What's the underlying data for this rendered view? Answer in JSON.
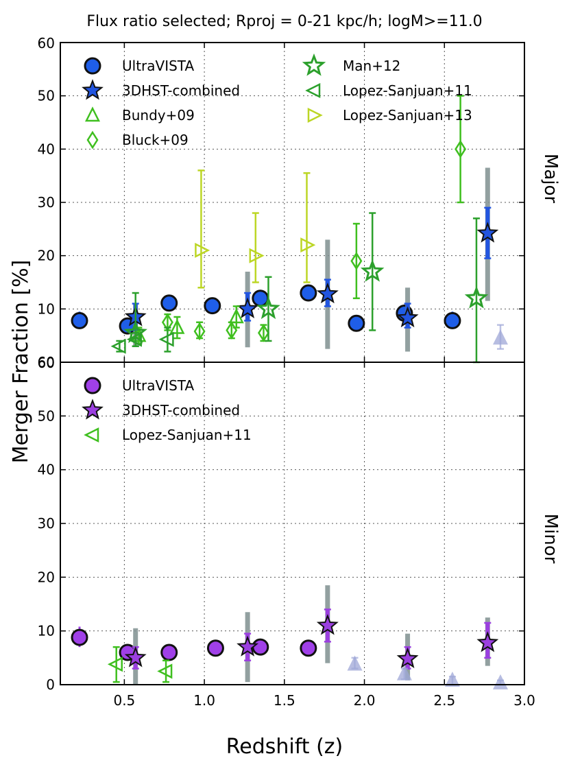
{
  "chart_data": {
    "type": "scatter",
    "title": "Flux ratio selected; Rproj = 0-21 kpc/h; logM>=11.0",
    "xlabel": "Redshift (z)",
    "ylabel": "Merger Fraction [%]",
    "xlim": [
      0.1,
      3.0
    ],
    "ylim": [
      0,
      60
    ],
    "xticks": [
      "0.5",
      "1.0",
      "1.5",
      "2.0",
      "2.5",
      "3.0"
    ],
    "yticks_major": [
      "10",
      "20",
      "30",
      "40",
      "50",
      "60"
    ],
    "yticks_minor": [
      "0",
      "10",
      "20",
      "30",
      "40",
      "50",
      "60"
    ],
    "grid": true,
    "colors": {
      "ultravista_major": "#1f5ee8",
      "ultravista_minor": "#a040e8",
      "star_major": "#2255e0",
      "star_minor": "#9b3fe0",
      "grey": "#7f9090",
      "green_dark": "#2ca02c",
      "green_mid": "#3fbf1f",
      "green_light": "#bcd625",
      "lavender": "#9fa8d8"
    },
    "panels": [
      {
        "label": "Major",
        "legend_col1": [
          "UltraVISTA",
          "3DHST-combined",
          "Bundy+09",
          "Bluck+09"
        ],
        "legend_col2": [
          "Man+12",
          "Lopez-Sanjuan+11",
          "Lopez-Sanjuan+13"
        ],
        "series": [
          {
            "name": "UltraVISTA",
            "marker": "circle",
            "color": "#1f5ee8",
            "points": [
              {
                "x": 0.22,
                "y": 7.8,
                "lo": 6.5,
                "hi": 9.5
              },
              {
                "x": 0.52,
                "y": 6.8,
                "lo": 5.8,
                "hi": 8.0
              },
              {
                "x": 0.78,
                "y": 11.1,
                "lo": 10.0,
                "hi": 12.2
              },
              {
                "x": 1.05,
                "y": 10.6,
                "lo": 9.8,
                "hi": 11.5
              },
              {
                "x": 1.35,
                "y": 12.0,
                "lo": 10.8,
                "hi": 13.2
              },
              {
                "x": 1.65,
                "y": 13.0,
                "lo": 11.5,
                "hi": 14.5
              },
              {
                "x": 1.95,
                "y": 7.3,
                "lo": 6.5,
                "hi": 8.2
              },
              {
                "x": 2.25,
                "y": 9.2,
                "lo": 7.8,
                "hi": 10.8
              },
              {
                "x": 2.55,
                "y": 7.8,
                "lo": 6.5,
                "hi": 9.5
              }
            ]
          },
          {
            "name": "3DHST-combined",
            "marker": "star",
            "color": "#2255e0",
            "sys_color": "#7f9090",
            "points": [
              {
                "x": 0.57,
                "y": 8.5,
                "lo": 6.0,
                "hi": 11.0,
                "slo": 3.0,
                "shi": 11.0
              },
              {
                "x": 1.27,
                "y": 10.0,
                "lo": 7.8,
                "hi": 13.0,
                "slo": 2.8,
                "shi": 17.0
              },
              {
                "x": 1.77,
                "y": 12.8,
                "lo": 10.5,
                "hi": 15.5,
                "slo": 2.5,
                "shi": 23.0
              },
              {
                "x": 2.27,
                "y": 8.3,
                "lo": 6.5,
                "hi": 11.0,
                "slo": 2.0,
                "shi": 14.0
              },
              {
                "x": 2.77,
                "y": 24.2,
                "lo": 19.5,
                "hi": 29.0,
                "slo": 11.5,
                "shi": 36.5
              }
            ]
          },
          {
            "name": "Bundy+09",
            "marker": "triangle-up",
            "color": "#3fbf1f",
            "points": [
              {
                "x": 0.59,
                "y": 5.0,
                "lo": 3.5,
                "hi": 6.5
              },
              {
                "x": 0.83,
                "y": 6.5,
                "lo": 4.5,
                "hi": 8.5
              },
              {
                "x": 1.2,
                "y": 8.5,
                "lo": 6.5,
                "hi": 10.5
              }
            ]
          },
          {
            "name": "Bluck+09",
            "marker": "diamond",
            "color": "#3fbf1f",
            "points": [
              {
                "x": 0.77,
                "y": 7.5,
                "lo": 6.0,
                "hi": 9.0
              },
              {
                "x": 0.97,
                "y": 5.8,
                "lo": 4.5,
                "hi": 7.5
              },
              {
                "x": 1.17,
                "y": 6.0,
                "lo": 4.5,
                "hi": 7.5
              },
              {
                "x": 1.37,
                "y": 5.5,
                "lo": 4.0,
                "hi": 7.0
              },
              {
                "x": 1.95,
                "y": 19.0,
                "lo": 12.0,
                "hi": 26.0
              },
              {
                "x": 2.6,
                "y": 40.0,
                "lo": 30.0,
                "hi": 50.0
              }
            ]
          },
          {
            "name": "Man+12",
            "marker": "star",
            "color": "#2ca02c",
            "points": [
              {
                "x": 0.57,
                "y": 5.5,
                "lo": 3.0,
                "hi": 13.0
              },
              {
                "x": 1.4,
                "y": 10.0,
                "lo": 4.0,
                "hi": 16.0
              },
              {
                "x": 2.05,
                "y": 17.0,
                "lo": 6.0,
                "hi": 28.0
              },
              {
                "x": 2.7,
                "y": 12.0,
                "lo": 0.0,
                "hi": 27.0
              }
            ]
          },
          {
            "name": "Lopez-Sanjuan+11",
            "marker": "triangle-left",
            "color": "#2ca02c",
            "points": [
              {
                "x": 0.47,
                "y": 3.0,
                "lo": 2.0,
                "hi": 4.0
              },
              {
                "x": 0.57,
                "y": 4.3,
                "lo": 3.0,
                "hi": 5.5
              },
              {
                "x": 0.77,
                "y": 4.3,
                "lo": 2.0,
                "hi": 6.5
              }
            ]
          },
          {
            "name": "Lopez-Sanjuan+13",
            "marker": "triangle-right",
            "color": "#bcd625",
            "points": [
              {
                "x": 0.98,
                "y": 21.0,
                "lo": 14.0,
                "hi": 36.0
              },
              {
                "x": 1.32,
                "y": 20.0,
                "lo": 15.0,
                "hi": 28.0
              },
              {
                "x": 1.64,
                "y": 22.0,
                "lo": 15.0,
                "hi": 35.5
              }
            ]
          },
          {
            "name": "upper-limit",
            "marker": "triangle-up",
            "color": "#9fa8d8",
            "points": [
              {
                "x": 2.85,
                "y": 4.5,
                "lo": 2.5,
                "hi": 7.0
              }
            ]
          }
        ]
      },
      {
        "label": "Minor",
        "legend_col1": [
          "UltraVISTA",
          "3DHST-combined",
          "Lopez-Sanjuan+11"
        ],
        "legend_col2": [],
        "series": [
          {
            "name": "UltraVISTA",
            "marker": "circle",
            "color": "#a040e8",
            "points": [
              {
                "x": 0.22,
                "y": 8.8,
                "lo": 7.0,
                "hi": 10.8
              },
              {
                "x": 0.52,
                "y": 6.0,
                "lo": 4.8,
                "hi": 7.2
              },
              {
                "x": 0.78,
                "y": 6.0,
                "lo": 5.0,
                "hi": 7.0
              },
              {
                "x": 1.07,
                "y": 6.8,
                "lo": 6.0,
                "hi": 7.6
              },
              {
                "x": 1.35,
                "y": 7.0,
                "lo": 6.0,
                "hi": 8.0
              },
              {
                "x": 1.65,
                "y": 6.8,
                "lo": 6.0,
                "hi": 7.6
              }
            ]
          },
          {
            "name": "3DHST-combined",
            "marker": "star",
            "color": "#9b3fe0",
            "sys_color": "#7f9090",
            "points": [
              {
                "x": 0.57,
                "y": 5.0,
                "lo": 3.0,
                "hi": 7.0,
                "slo": 0.0,
                "shi": 10.5
              },
              {
                "x": 1.27,
                "y": 7.0,
                "lo": 4.5,
                "hi": 9.5,
                "slo": 0.5,
                "shi": 13.5
              },
              {
                "x": 1.77,
                "y": 11.0,
                "lo": 8.0,
                "hi": 14.0,
                "slo": 4.0,
                "shi": 18.5
              },
              {
                "x": 2.27,
                "y": 4.8,
                "lo": 3.0,
                "hi": 7.0,
                "slo": 0.8,
                "shi": 9.5
              },
              {
                "x": 2.77,
                "y": 7.8,
                "lo": 5.0,
                "hi": 11.5,
                "slo": 3.5,
                "shi": 12.5
              }
            ]
          },
          {
            "name": "Lopez-Sanjuan+11",
            "marker": "triangle-left",
            "color": "#3fbf1f",
            "points": [
              {
                "x": 0.45,
                "y": 3.8,
                "lo": 0.5,
                "hi": 7.0
              },
              {
                "x": 0.76,
                "y": 2.5,
                "lo": 0.5,
                "hi": 4.5
              }
            ]
          },
          {
            "name": "upper-limit",
            "marker": "triangle-up",
            "color": "#9fa8d8",
            "points": [
              {
                "x": 1.94,
                "y": 3.8,
                "lo": 3.0,
                "hi": 5.0
              },
              {
                "x": 2.25,
                "y": 2.0,
                "lo": 1.0,
                "hi": 3.0
              },
              {
                "x": 2.55,
                "y": 0.8,
                "lo": 0.0,
                "hi": 1.5
              },
              {
                "x": 2.85,
                "y": 0.3,
                "lo": 0.0,
                "hi": 0.8
              }
            ]
          }
        ]
      }
    ]
  }
}
